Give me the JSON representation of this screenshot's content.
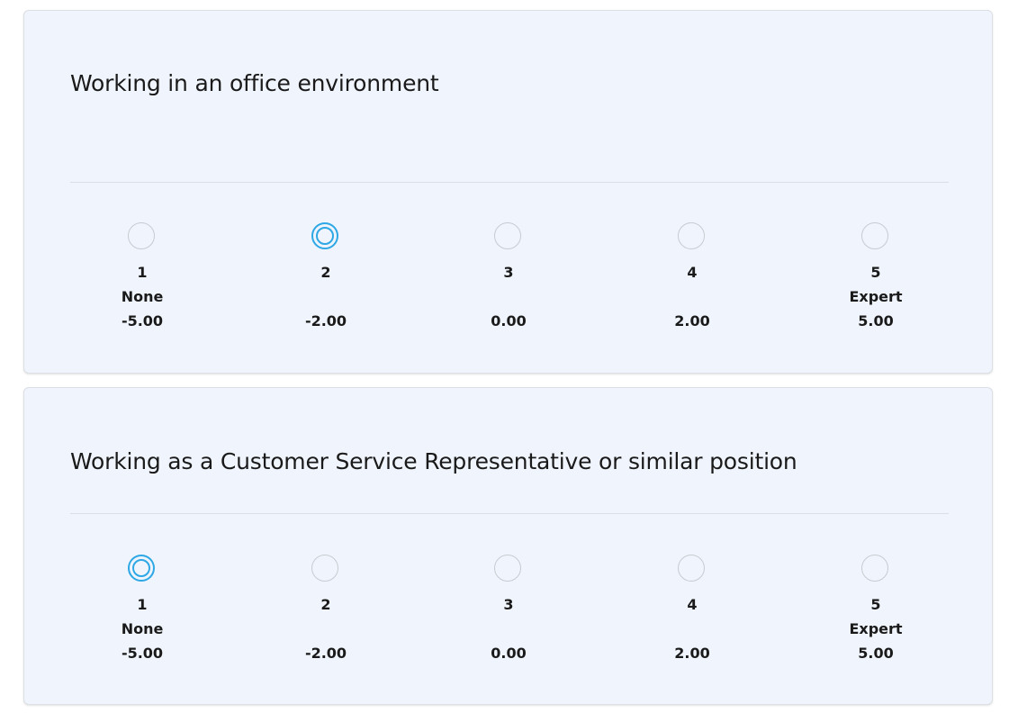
{
  "questions": [
    {
      "title": "Working in an office environment",
      "selected_value": "2",
      "options": [
        {
          "value": "1",
          "label": "None",
          "score": "-5.00",
          "selected": false
        },
        {
          "value": "2",
          "label": "",
          "score": "-2.00",
          "selected": true
        },
        {
          "value": "3",
          "label": "",
          "score": "0.00",
          "selected": false
        },
        {
          "value": "4",
          "label": "",
          "score": "2.00",
          "selected": false
        },
        {
          "value": "5",
          "label": "Expert",
          "score": "5.00",
          "selected": false
        }
      ]
    },
    {
      "title": "Working as a Customer Service Representative or similar position",
      "selected_value": "1",
      "options": [
        {
          "value": "1",
          "label": "None",
          "score": "-5.00",
          "selected": true
        },
        {
          "value": "2",
          "label": "",
          "score": "-2.00",
          "selected": false
        },
        {
          "value": "3",
          "label": "",
          "score": "0.00",
          "selected": false
        },
        {
          "value": "4",
          "label": "",
          "score": "2.00",
          "selected": false
        },
        {
          "value": "5",
          "label": "Expert",
          "score": "5.00",
          "selected": false
        }
      ]
    }
  ],
  "colors": {
    "card_background": "#f0f5fd",
    "selected_radio": "#2ea8e5",
    "unselected_radio_border": "#c7cbd1",
    "text": "#1a1a1a"
  }
}
